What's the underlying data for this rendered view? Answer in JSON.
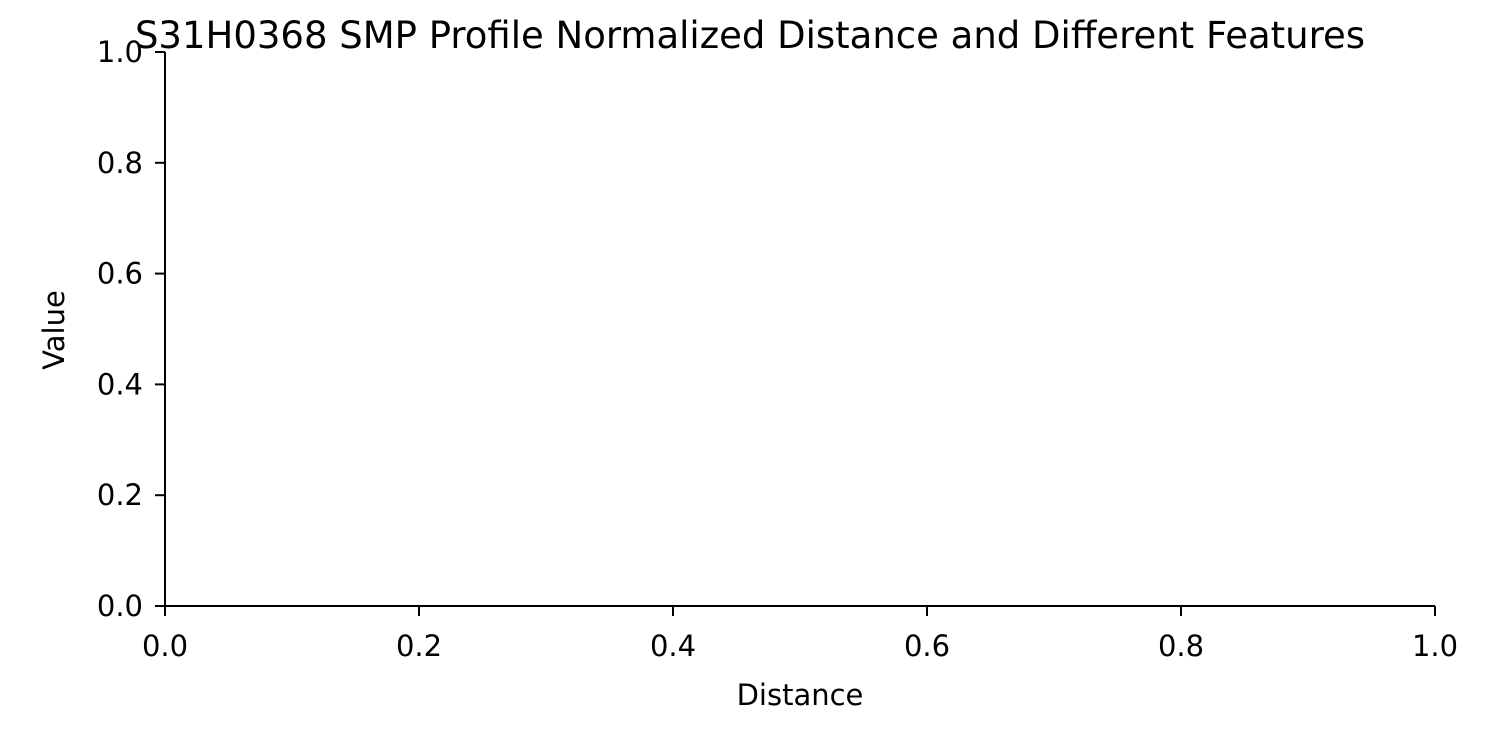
{
  "chart_data": {
    "type": "line",
    "title": "S31H0368 SMP Profile Normalized Distance and Different Features",
    "xlabel": "Distance",
    "ylabel": "Value",
    "xlim": [
      0,
      1
    ],
    "ylim": [
      0,
      1
    ],
    "x_ticks": [
      "0.0",
      "0.2",
      "0.4",
      "0.6",
      "0.8",
      "1.0"
    ],
    "y_ticks": [
      "0.0",
      "0.2",
      "0.4",
      "0.6",
      "0.8",
      "1.0"
    ],
    "series": [],
    "grid": false,
    "legend": "none",
    "colors": {
      "axis": "#000000",
      "background": "#ffffff"
    }
  }
}
